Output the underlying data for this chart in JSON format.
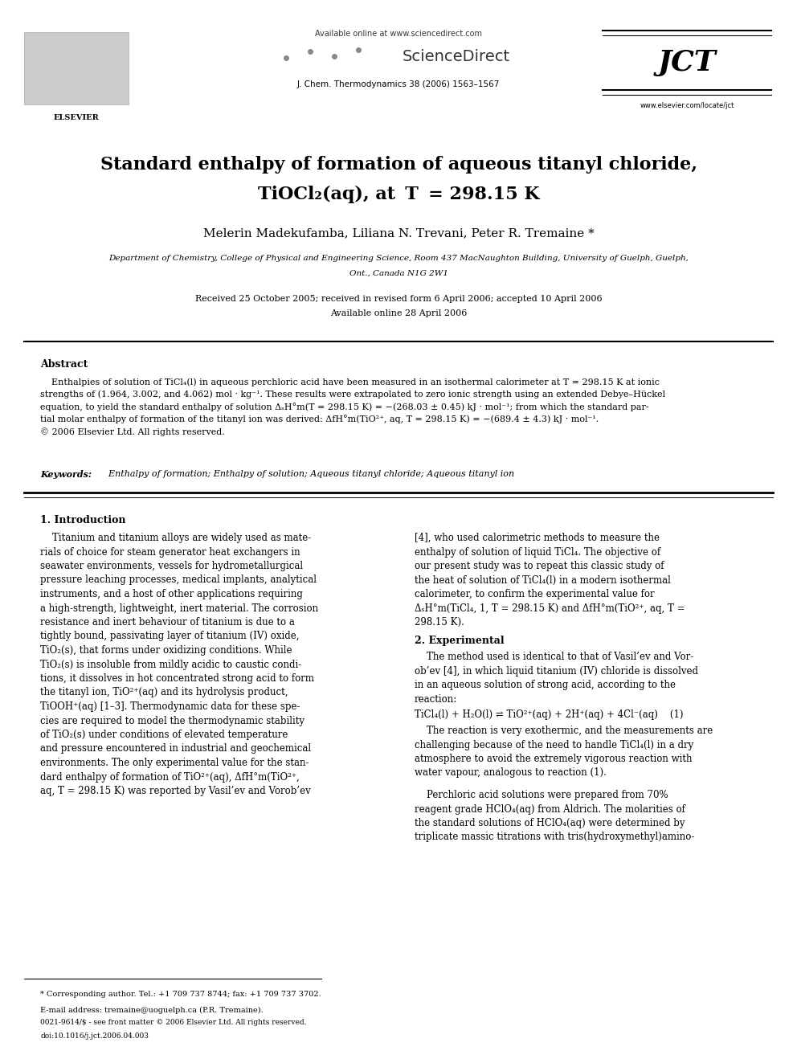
{
  "page_width": 9.92,
  "page_height": 13.23,
  "bg_color": "#ffffff",
  "header_available": "Available online at www.sciencedirect.com",
  "header_sciencedirect": "ScienceDirect",
  "header_journal": "J. Chem. Thermodynamics 38 (2006) 1563–1567",
  "header_elsevier": "ELSEVIER",
  "header_jct": "JCT",
  "header_website": "www.elsevier.com/locate/jct",
  "title_line1": "Standard enthalpy of formation of aqueous titanyl chloride,",
  "title_line2": "TiOCl₂(aq), at  T  = 298.15 K",
  "authors": "Melerin Madekufamba, Liliana N. Trevani, Peter R. Tremaine *",
  "affil1": "Department of Chemistry, College of Physical and Engineering Science, Room 437 MacNaughton Building, University of Guelph, Guelph,",
  "affil2": "Ont., Canada N1G 2W1",
  "received": "Received 25 October 2005; received in revised form 6 April 2006; accepted 10 April 2006",
  "avail_online": "Available online 28 April 2006",
  "abstract_title": "Abstract",
  "abstract_body": "    Enthalpies of solution of TiCl₄(l) in aqueous perchloric acid have been measured in an isothermal calorimeter at T = 298.15 K at ionic\nstrengths of (1.964, 3.002, and 4.062) mol · kg⁻¹. These results were extrapolated to zero ionic strength using an extended Debye–Hückel\nequation, to yield the standard enthalpy of solution ΔₛH°m(T = 298.15 K) = −(268.03 ± 0.45) kJ · mol⁻¹; from which the standard par-\ntial molar enthalpy of formation of the titanyl ion was derived: ΔfH°m(TiO²⁺, aq, T = 298.15 K) = −(689.4 ± 4.3) kJ · mol⁻¹.\n© 2006 Elsevier Ltd. All rights reserved.",
  "kw_label": "Keywords:",
  "kw_text": "  Enthalpy of formation; Enthalpy of solution; Aqueous titanyl chloride; Aqueous titanyl ion",
  "sec1_title": "1. Introduction",
  "sec1_col1": "    Titanium and titanium alloys are widely used as mate-\nrials of choice for steam generator heat exchangers in\nseawater environments, vessels for hydrometallurgical\npressure leaching processes, medical implants, analytical\ninstruments, and a host of other applications requiring\na high-strength, lightweight, inert material. The corrosion\nresistance and inert behaviour of titanium is due to a\ntightly bound, passivating layer of titanium (IV) oxide,\nTiO₂(s), that forms under oxidizing conditions. While\nTiO₂(s) is insoluble from mildly acidic to caustic condi-\ntions, it dissolves in hot concentrated strong acid to form\nthe titanyl ion, TiO²⁺(aq) and its hydrolysis product,\nTiOOH⁺(aq) [1–3]. Thermodynamic data for these spe-\ncies are required to model the thermodynamic stability\nof TiO₂(s) under conditions of elevated temperature\nand pressure encountered in industrial and geochemical\nenvironments. The only experimental value for the stan-\ndard enthalpy of formation of TiO²⁺(aq), ΔfH°m(TiO²⁺,\naq, T = 298.15 K) was reported by Vasil’ev and Vorob’ev",
  "sec1_col2": "[4], who used calorimetric methods to measure the\nenthalpy of solution of liquid TiCl₄. The objective of\nour present study was to repeat this classic study of\nthe heat of solution of TiCl₄(l) in a modern isothermal\ncalorimeter, to confirm the experimental value for\nΔₛH°m(TiCl₄, 1, T = 298.15 K) and ΔfH°m(TiO²⁺, aq, T =\n298.15 K).",
  "sec2_title": "2. Experimental",
  "sec2_col2a": "    The method used is identical to that of Vasil’ev and Vor-\nob’ev [4], in which liquid titanium (IV) chloride is dissolved\nin an aqueous solution of strong acid, according to the\nreaction:",
  "reaction": "TiCl₄(l) + H₂O(l) ⇌ TiO²⁺(aq) + 2H⁺(aq) + 4Cl⁻(aq)    (1)",
  "sec2_col2b": "    The reaction is very exothermic, and the measurements are\nchallenging because of the need to handle TiCl₄(l) in a dry\natmosphere to avoid the extremely vigorous reaction with\nwater vapour, analogous to reaction (1).",
  "sec2_col2c": "    Perchloric acid solutions were prepared from 70%\nreagent grade HClO₄(aq) from Aldrich. The molarities of\nthe standard solutions of HClO₄(aq) were determined by\ntriplicate massic titrations with tris(hydroxymethyl)amino-",
  "fn_line": "* Corresponding author. Tel.: +1 709 737 8744; fax: +1 709 737 3702.",
  "fn_email": "E-mail address: tremaine@uoguelph.ca (P.R. Tremaine).",
  "bottom1": "0021-9614/$ - see front matter © 2006 Elsevier Ltd. All rights reserved.",
  "bottom2": "doi:10.1016/j.jct.2006.04.003"
}
